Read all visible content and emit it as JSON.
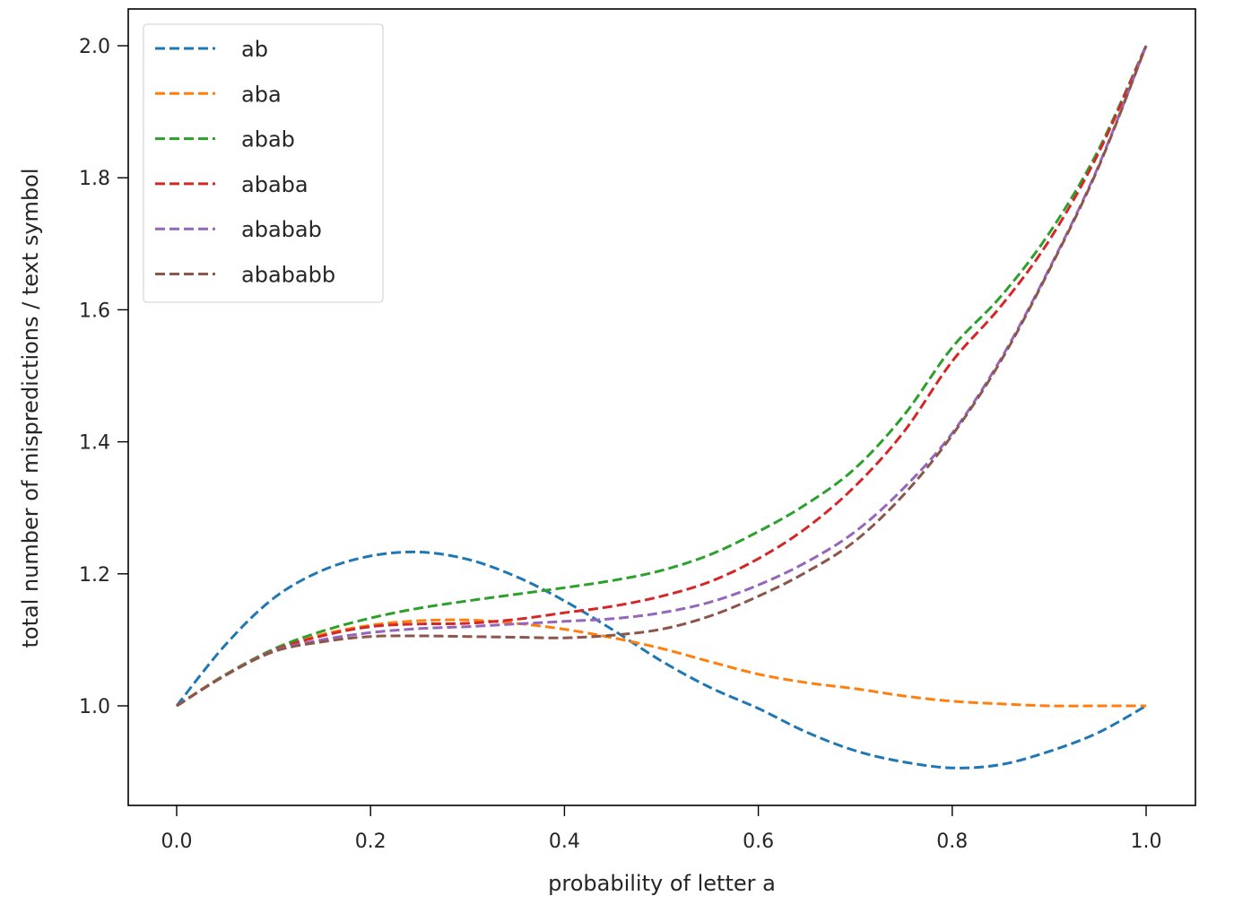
{
  "chart_data": {
    "type": "line",
    "title": "",
    "xlabel": "probability of letter a",
    "ylabel": "total number of mispredictions / text symbol",
    "xlim": [
      -0.05,
      1.05
    ],
    "ylim": [
      0.85,
      2.05
    ],
    "xticks": [
      0.0,
      0.2,
      0.4,
      0.6,
      0.8,
      1.0
    ],
    "xtick_labels": [
      "0.0",
      "0.2",
      "0.4",
      "0.6",
      "0.8",
      "1.0"
    ],
    "yticks": [
      1.0,
      1.2,
      1.4,
      1.6,
      1.8,
      2.0
    ],
    "ytick_labels": [
      "1.0",
      "1.2",
      "1.4",
      "1.6",
      "1.8",
      "2.0"
    ],
    "grid": false,
    "legend_position": "top-left",
    "line_style": "dashed",
    "x": [
      0.0,
      0.05,
      0.1,
      0.15,
      0.2,
      0.25,
      0.3,
      0.35,
      0.4,
      0.45,
      0.5,
      0.55,
      0.6,
      0.65,
      0.7,
      0.75,
      0.8,
      0.85,
      0.9,
      0.95,
      1.0
    ],
    "series": [
      {
        "name": "ab",
        "color": "#1f77b4",
        "values": [
          1.0,
          1.092,
          1.163,
          1.205,
          1.227,
          1.233,
          1.222,
          1.196,
          1.159,
          1.115,
          1.068,
          1.028,
          0.996,
          0.96,
          0.932,
          0.915,
          0.906,
          0.911,
          0.931,
          0.959,
          1.0
        ]
      },
      {
        "name": "aba",
        "color": "#ff7f0e",
        "values": [
          1.0,
          1.047,
          1.084,
          1.108,
          1.122,
          1.129,
          1.13,
          1.125,
          1.116,
          1.103,
          1.087,
          1.067,
          1.048,
          1.035,
          1.026,
          1.015,
          1.007,
          1.003,
          1.0,
          1.0,
          1.0
        ]
      },
      {
        "name": "abab",
        "color": "#2ca02c",
        "values": [
          1.0,
          1.047,
          1.086,
          1.113,
          1.133,
          1.148,
          1.159,
          1.169,
          1.179,
          1.19,
          1.205,
          1.229,
          1.264,
          1.306,
          1.36,
          1.44,
          1.543,
          1.62,
          1.716,
          1.84,
          2.0
        ]
      },
      {
        "name": "ababa",
        "color": "#d62728",
        "values": [
          1.0,
          1.046,
          1.084,
          1.106,
          1.12,
          1.124,
          1.125,
          1.131,
          1.141,
          1.151,
          1.166,
          1.188,
          1.223,
          1.27,
          1.333,
          1.415,
          1.522,
          1.605,
          1.705,
          1.835,
          2.0
        ]
      },
      {
        "name": "ababab",
        "color": "#9467bd",
        "values": [
          1.0,
          1.046,
          1.083,
          1.1,
          1.111,
          1.117,
          1.12,
          1.124,
          1.128,
          1.132,
          1.141,
          1.157,
          1.183,
          1.218,
          1.264,
          1.33,
          1.413,
          1.525,
          1.662,
          1.815,
          2.0
        ]
      },
      {
        "name": "abababb",
        "color": "#8c564b",
        "values": [
          1.0,
          1.046,
          1.082,
          1.097,
          1.105,
          1.106,
          1.105,
          1.104,
          1.103,
          1.107,
          1.116,
          1.136,
          1.166,
          1.203,
          1.25,
          1.32,
          1.41,
          1.522,
          1.66,
          1.813,
          2.0
        ]
      }
    ]
  }
}
